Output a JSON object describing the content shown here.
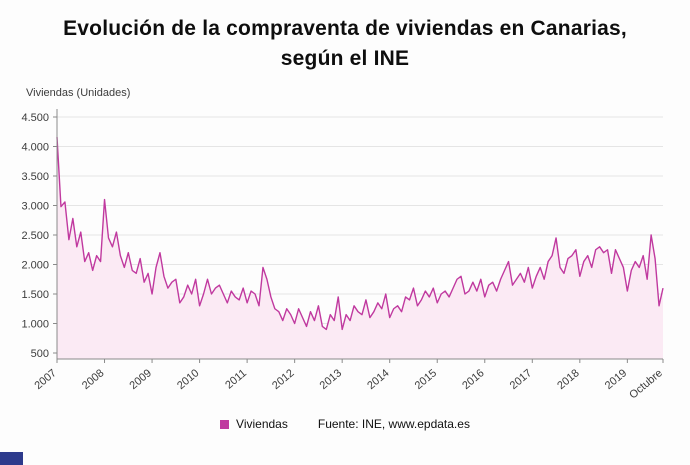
{
  "title": {
    "line1": "Evolución de la compraventa de viviendas en Canarias,",
    "line2": "según el INE"
  },
  "axis_title": "Viviendas (Unidades)",
  "legend": {
    "series_label": "Viviendas",
    "source": "Fuente: INE, www.epdata.es"
  },
  "colors": {
    "line": "#c0399f",
    "area": "#fbeaf4",
    "grid": "#e5e5e5",
    "axis": "#8a8a8a",
    "tick_text": "#3c3c3c"
  },
  "chart_data": {
    "type": "line",
    "title": "Evolución de la compraventa de viviendas en Canarias, según el INE",
    "xlabel": "",
    "ylabel": "Viviendas (Unidades)",
    "ylim": [
      500,
      4500
    ],
    "ytick_step": 500,
    "ytick_labels": [
      "4.500",
      "4.000",
      "3.500",
      "3.000",
      "2.500",
      "2.000",
      "1.500",
      "1.000",
      "500"
    ],
    "grid": true,
    "legend_position": "bottom",
    "xticks": [
      {
        "label": "2007",
        "i": 0
      },
      {
        "label": "2008",
        "i": 12
      },
      {
        "label": "2009",
        "i": 24
      },
      {
        "label": "2010",
        "i": 36
      },
      {
        "label": "2011",
        "i": 48
      },
      {
        "label": "2012",
        "i": 60
      },
      {
        "label": "2013",
        "i": 72
      },
      {
        "label": "2014",
        "i": 84
      },
      {
        "label": "2015",
        "i": 96
      },
      {
        "label": "2016",
        "i": 108
      },
      {
        "label": "2017",
        "i": 120
      },
      {
        "label": "2018",
        "i": 132
      },
      {
        "label": "2019",
        "i": 144
      },
      {
        "label": "Octubre",
        "i": 153
      }
    ],
    "series": [
      {
        "name": "Viviendas",
        "values": [
          4160,
          2980,
          3060,
          2420,
          2780,
          2300,
          2550,
          2050,
          2200,
          1900,
          2150,
          2050,
          3100,
          2450,
          2300,
          2550,
          2150,
          1950,
          2200,
          1900,
          1850,
          2100,
          1700,
          1850,
          1500,
          1950,
          2200,
          1800,
          1600,
          1700,
          1750,
          1350,
          1450,
          1650,
          1500,
          1750,
          1300,
          1500,
          1750,
          1500,
          1600,
          1650,
          1500,
          1350,
          1550,
          1450,
          1400,
          1600,
          1350,
          1550,
          1500,
          1300,
          1950,
          1750,
          1450,
          1250,
          1200,
          1050,
          1250,
          1150,
          1000,
          1250,
          1100,
          950,
          1200,
          1050,
          1300,
          950,
          900,
          1150,
          1050,
          1450,
          900,
          1150,
          1050,
          1300,
          1200,
          1150,
          1400,
          1100,
          1200,
          1350,
          1250,
          1500,
          1100,
          1250,
          1300,
          1200,
          1450,
          1400,
          1600,
          1300,
          1400,
          1550,
          1450,
          1600,
          1350,
          1500,
          1550,
          1450,
          1600,
          1750,
          1800,
          1500,
          1550,
          1700,
          1550,
          1750,
          1450,
          1650,
          1700,
          1550,
          1750,
          1900,
          2050,
          1650,
          1750,
          1850,
          1700,
          1950,
          1600,
          1800,
          1950,
          1750,
          2050,
          2150,
          2450,
          1950,
          1850,
          2100,
          2150,
          2250,
          1800,
          2050,
          2150,
          1950,
          2250,
          2300,
          2200,
          2250,
          1850,
          2250,
          2100,
          1950,
          1550,
          1900,
          2050,
          1950,
          2150,
          1750,
          2500,
          2100,
          1300,
          1600
        ]
      }
    ]
  }
}
